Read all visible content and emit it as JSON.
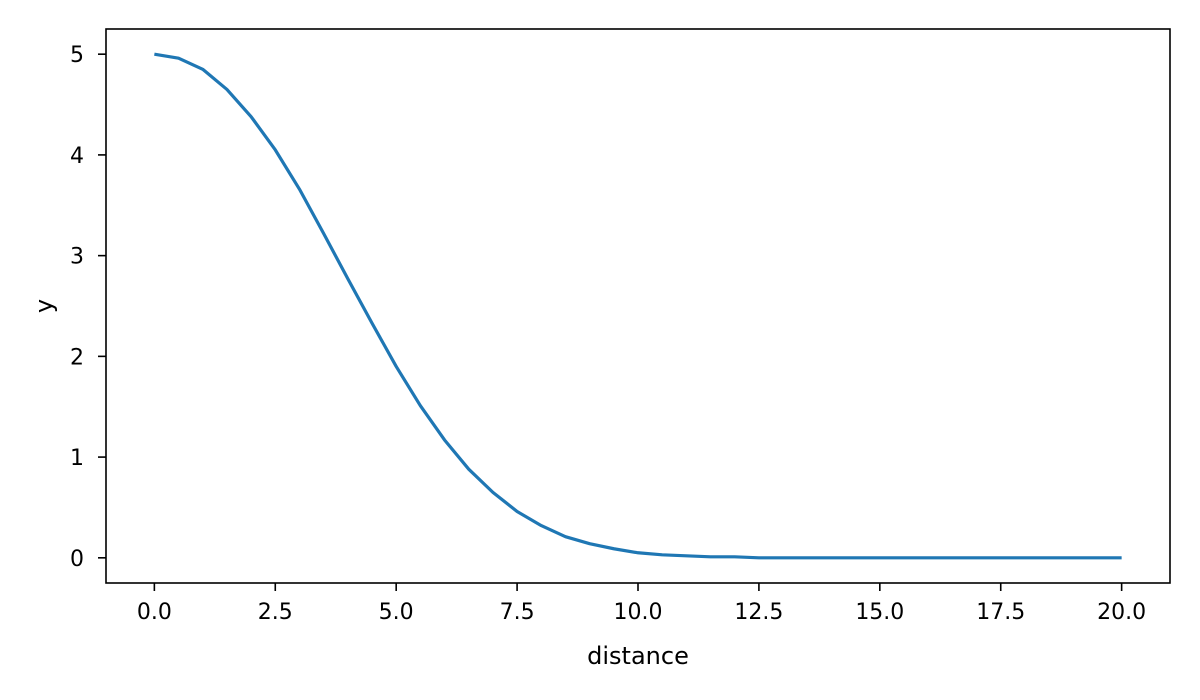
{
  "chart_data": {
    "type": "line",
    "title": "",
    "xlabel": "distance",
    "ylabel": "y",
    "xlim": [
      -1.0,
      21.0
    ],
    "ylim": [
      -0.25,
      5.25
    ],
    "xticks": [
      0.0,
      2.5,
      5.0,
      7.5,
      10.0,
      12.5,
      15.0,
      17.5,
      20.0
    ],
    "xtick_labels": [
      "0.0",
      "2.5",
      "5.0",
      "7.5",
      "10.0",
      "12.5",
      "15.0",
      "17.5",
      "20.0"
    ],
    "yticks": [
      0,
      1,
      2,
      3,
      4,
      5
    ],
    "ytick_labels": [
      "0",
      "1",
      "2",
      "3",
      "4",
      "5"
    ],
    "grid": false,
    "legend": "none",
    "series": [
      {
        "color": "#1f77b4",
        "x": [
          0,
          0.5,
          1,
          1.5,
          2,
          2.5,
          3,
          3.5,
          4,
          4.5,
          5,
          5.5,
          6,
          6.5,
          7,
          7.5,
          8,
          8.5,
          9,
          9.5,
          10,
          10.5,
          11,
          11.5,
          12,
          12.5,
          13,
          13.5,
          14,
          14.5,
          15,
          15.5,
          16,
          16.5,
          17,
          17.5,
          18,
          18.5,
          19,
          19.5,
          20
        ],
        "y": [
          5.0,
          4.96,
          4.85,
          4.65,
          4.38,
          4.05,
          3.66,
          3.22,
          2.77,
          2.33,
          1.9,
          1.51,
          1.17,
          0.88,
          0.65,
          0.46,
          0.32,
          0.21,
          0.14,
          0.09,
          0.05,
          0.03,
          0.02,
          0.01,
          0.01,
          0.0,
          0.0,
          0.0,
          0.0,
          0.0,
          0.0,
          0.0,
          0.0,
          0.0,
          0.0,
          0.0,
          0.0,
          0.0,
          0.0,
          0.0,
          0.0
        ]
      }
    ]
  }
}
